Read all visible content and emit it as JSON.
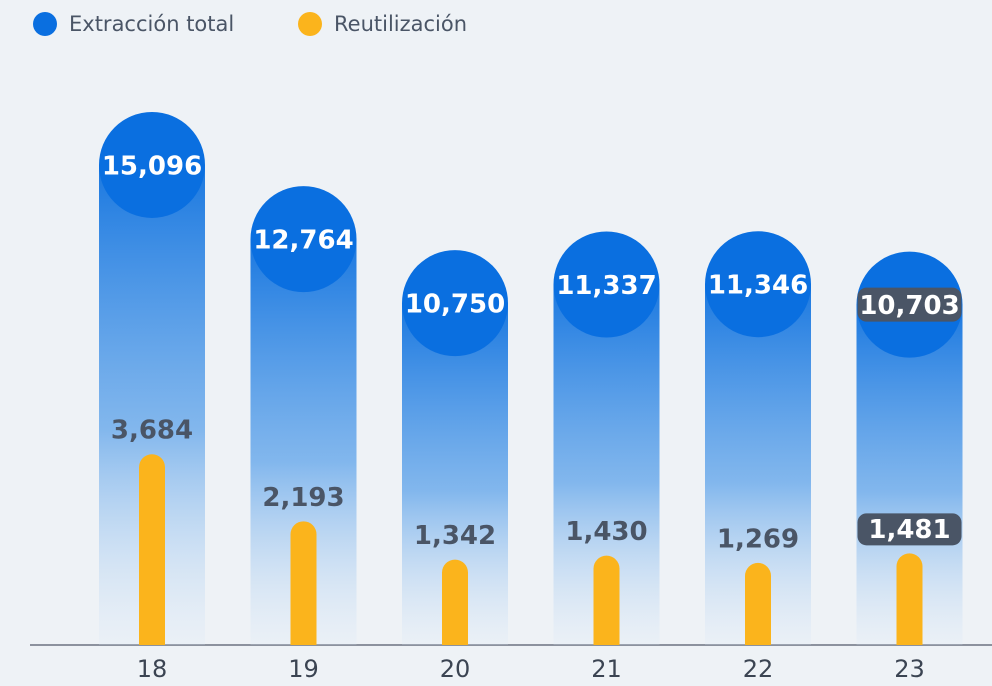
{
  "chart_data": {
    "type": "bar",
    "categories": [
      "18",
      "19",
      "20",
      "21",
      "22",
      "23"
    ],
    "series": [
      {
        "name": "Extracción total",
        "color": "#0a6fe0",
        "values": [
          15096,
          12764,
          10750,
          11337,
          11346,
          10703
        ],
        "value_labels": [
          "15,096",
          "12,764",
          "10,750",
          "11,337",
          "11,346",
          "10,703"
        ]
      },
      {
        "name": "Reutilización",
        "color": "#fbb41c",
        "values": [
          3684,
          2193,
          1342,
          1430,
          1269,
          1481
        ],
        "value_labels": [
          "3,684",
          "2,193",
          "1,342",
          "1,430",
          "1,269",
          "1,481"
        ]
      }
    ],
    "legend": "top-left"
  }
}
